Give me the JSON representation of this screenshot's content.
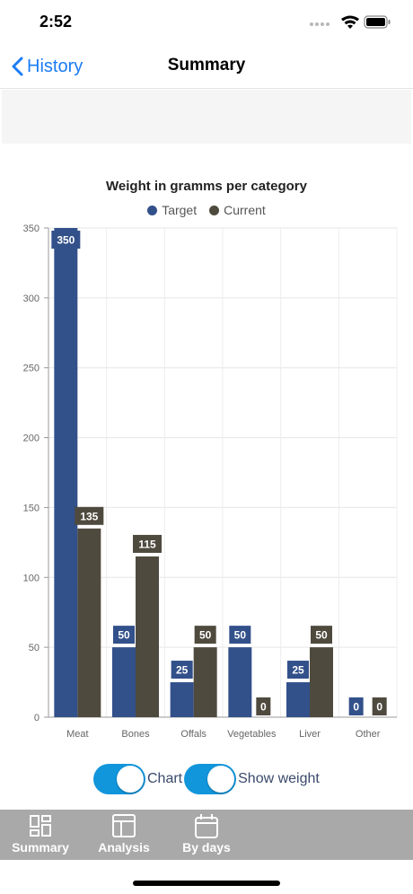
{
  "status": {
    "time": "2:52"
  },
  "nav": {
    "back_label": "History",
    "title": "Summary"
  },
  "colors": {
    "target": "#32508a",
    "current": "#4f4a3e",
    "accent": "#1a7cf5",
    "toggle": "#1296db",
    "tabbar": "#a9a9a9"
  },
  "chart_data": {
    "type": "bar",
    "title": "Weight in gramms per category",
    "categories": [
      "Meat",
      "Bones",
      "Offals",
      "Vegetables",
      "Liver",
      "Other"
    ],
    "series": [
      {
        "name": "Target",
        "values": [
          350,
          50,
          25,
          50,
          25,
          0
        ]
      },
      {
        "name": "Current",
        "values": [
          135,
          115,
          50,
          0,
          50,
          0
        ]
      }
    ],
    "ylim": [
      0,
      350
    ],
    "yticks": [
      0,
      50,
      100,
      150,
      200,
      250,
      300,
      350
    ],
    "grid": true,
    "legend_position": "top-center",
    "data_labels": true
  },
  "toggles": [
    {
      "label": "Chart",
      "on": true
    },
    {
      "label": "Show weight",
      "on": true
    }
  ],
  "tabs": [
    {
      "label": "Summary",
      "icon": "dashboard-icon"
    },
    {
      "label": "Analysis",
      "icon": "table-icon"
    },
    {
      "label": "By days",
      "icon": "calendar-icon"
    }
  ]
}
